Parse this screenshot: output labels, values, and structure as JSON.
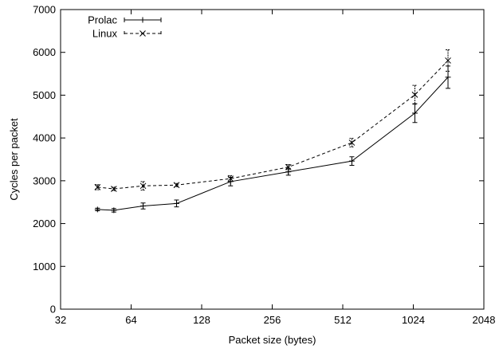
{
  "chart_data": {
    "type": "line",
    "title": "",
    "xlabel": "Packet size (bytes)",
    "ylabel": "Cycles per packet",
    "xscale": "log2",
    "xlim": [
      32,
      2048
    ],
    "ylim": [
      0,
      7000
    ],
    "xticks": [
      "32",
      "64",
      "128",
      "256",
      "512",
      "1024",
      "2048"
    ],
    "yticks": [
      "0",
      "1000",
      "2000",
      "3000",
      "4000",
      "5000",
      "6000",
      "7000"
    ],
    "grid": false,
    "legend_position": "top-left",
    "error_bars": true,
    "series": [
      {
        "name": "Prolac",
        "line_style": "solid",
        "marker": "plus",
        "color": "#000000",
        "points": [
          {
            "x": 46,
            "y": 2330,
            "err": 30
          },
          {
            "x": 54,
            "y": 2310,
            "err": 40
          },
          {
            "x": 72,
            "y": 2410,
            "err": 70
          },
          {
            "x": 100,
            "y": 2470,
            "err": 80
          },
          {
            "x": 170,
            "y": 2980,
            "err": 100
          },
          {
            "x": 300,
            "y": 3210,
            "err": 80
          },
          {
            "x": 560,
            "y": 3460,
            "err": 100
          },
          {
            "x": 1040,
            "y": 4580,
            "err": 220
          },
          {
            "x": 1440,
            "y": 5420,
            "err": 260
          }
        ]
      },
      {
        "name": "Linux",
        "line_style": "dashed",
        "marker": "cross",
        "color": "#000000",
        "points": [
          {
            "x": 46,
            "y": 2850,
            "err": 60
          },
          {
            "x": 54,
            "y": 2810,
            "err": 40
          },
          {
            "x": 72,
            "y": 2880,
            "err": 100
          },
          {
            "x": 100,
            "y": 2900,
            "err": 40
          },
          {
            "x": 170,
            "y": 3050,
            "err": 70
          },
          {
            "x": 300,
            "y": 3320,
            "err": 60
          },
          {
            "x": 560,
            "y": 3890,
            "err": 100
          },
          {
            "x": 1040,
            "y": 5010,
            "err": 220
          },
          {
            "x": 1440,
            "y": 5810,
            "err": 250
          }
        ]
      }
    ]
  }
}
